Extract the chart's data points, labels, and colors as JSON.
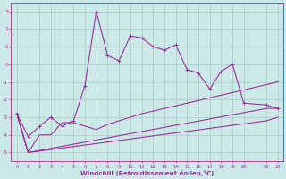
{
  "background_color": "#cce8e8",
  "plot_bg_color": "#cce8e8",
  "line_color": "#993399",
  "grid_color": "#aacccc",
  "xlabel": "Windchill (Refroidissement éolien,°C)",
  "xlim": [
    -0.5,
    23.5
  ],
  "ylim": [
    -5.5,
    3.5
  ],
  "yticks": [
    -5,
    -4,
    -3,
    -2,
    -1,
    0,
    1,
    2,
    3
  ],
  "xticks": [
    0,
    1,
    2,
    3,
    4,
    5,
    6,
    7,
    8,
    9,
    10,
    11,
    12,
    13,
    14,
    15,
    16,
    17,
    18,
    19,
    20,
    22,
    23
  ],
  "xtick_labels": [
    "0",
    "1",
    "2",
    "3",
    "4",
    "5",
    "6",
    "7",
    "8",
    "9",
    "10",
    "11",
    "12",
    "13",
    "14",
    "15",
    "16",
    "17",
    "18",
    "19",
    "20",
    "22",
    "23"
  ],
  "line1_x": [
    0,
    1,
    2,
    3,
    4,
    5,
    6,
    7,
    8,
    9,
    10,
    11,
    12,
    13,
    14,
    15,
    16,
    17,
    18,
    19,
    20,
    22,
    23
  ],
  "line1_y": [
    -2.8,
    -4.1,
    -3.5,
    -3.0,
    -3.5,
    -3.2,
    -1.2,
    3.0,
    0.5,
    0.2,
    1.6,
    1.5,
    1.0,
    0.8,
    1.1,
    -0.3,
    -0.5,
    -1.4,
    -0.4,
    0.0,
    -2.2,
    -2.3,
    -2.5
  ],
  "line2_x": [
    0,
    1,
    2,
    3,
    4,
    5,
    6,
    7,
    8,
    9,
    10,
    11,
    12,
    13,
    14,
    15,
    16,
    17,
    18,
    19,
    20,
    22,
    23
  ],
  "line2_y": [
    -2.8,
    -5.0,
    -4.0,
    -4.0,
    -3.3,
    -3.3,
    -3.5,
    -3.7,
    -3.4,
    -3.2,
    -3.0,
    -2.8,
    -2.65,
    -2.5,
    -2.35,
    -2.2,
    -2.05,
    -1.9,
    -1.75,
    -1.6,
    -1.45,
    -1.15,
    -1.0
  ],
  "line3_x": [
    0,
    1,
    22,
    23
  ],
  "line3_y": [
    -2.8,
    -5.0,
    -2.5,
    -2.5
  ],
  "line4_x": [
    0,
    1,
    22,
    23
  ],
  "line4_y": [
    -2.8,
    -5.0,
    -3.2,
    -3.0
  ]
}
